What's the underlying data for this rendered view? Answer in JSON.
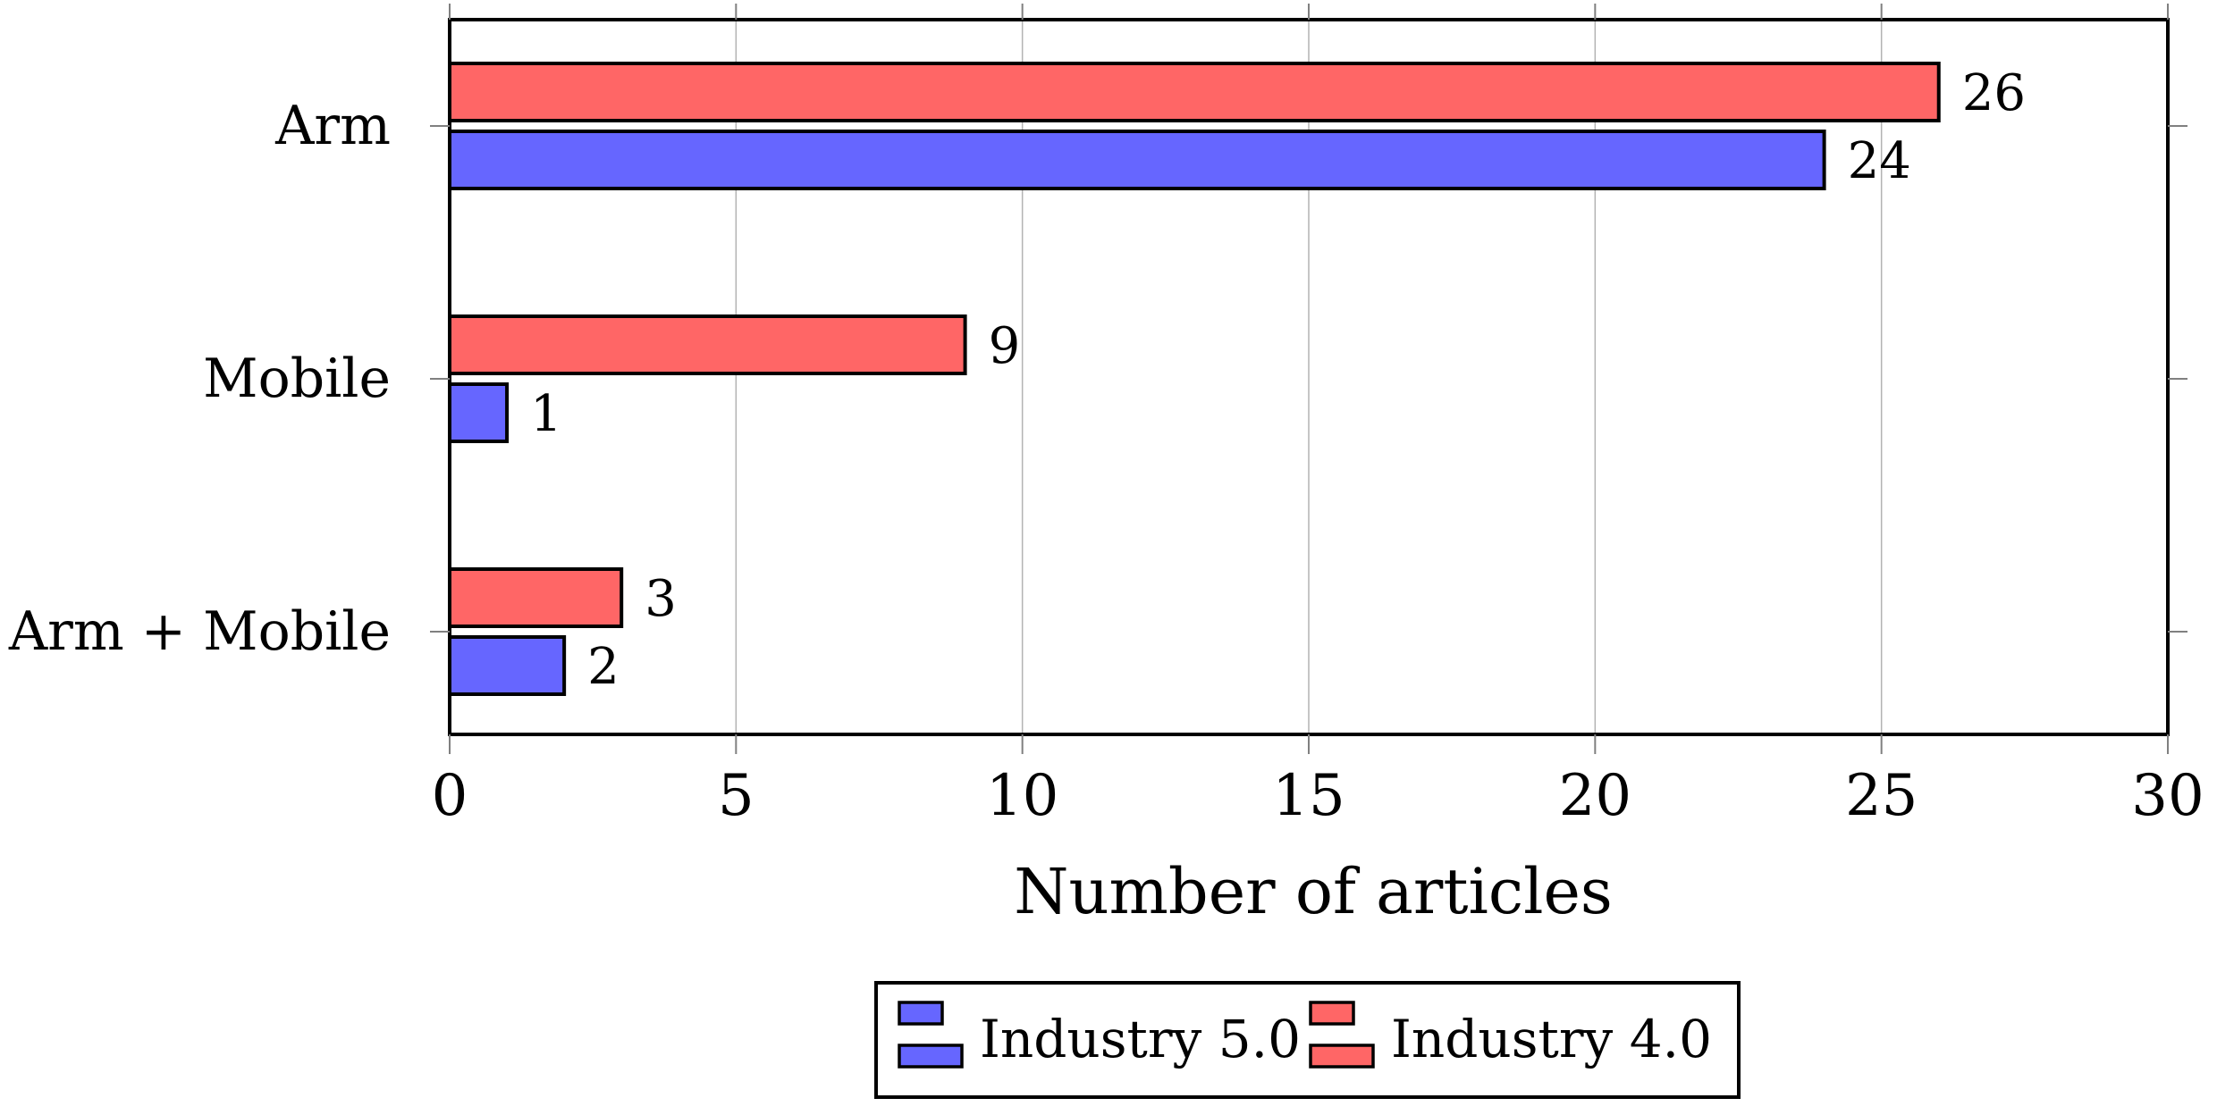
{
  "chart_data": {
    "type": "bar",
    "orientation": "horizontal",
    "categories": [
      "Arm",
      "Mobile",
      "Arm + Mobile"
    ],
    "series": [
      {
        "name": "Industry 5.0",
        "values": [
          24,
          1,
          2
        ],
        "color": "#6666ff"
      },
      {
        "name": "Industry 4.0",
        "values": [
          26,
          9,
          3
        ],
        "color": "#ff6666"
      }
    ],
    "xlabel": "Number of articles",
    "ylabel": "",
    "xlim": [
      0,
      30
    ],
    "xticks": [
      0,
      5,
      10,
      15,
      20,
      25,
      30
    ],
    "grid": "vertical",
    "legend_position": "bottom-center",
    "data_labels": true
  }
}
